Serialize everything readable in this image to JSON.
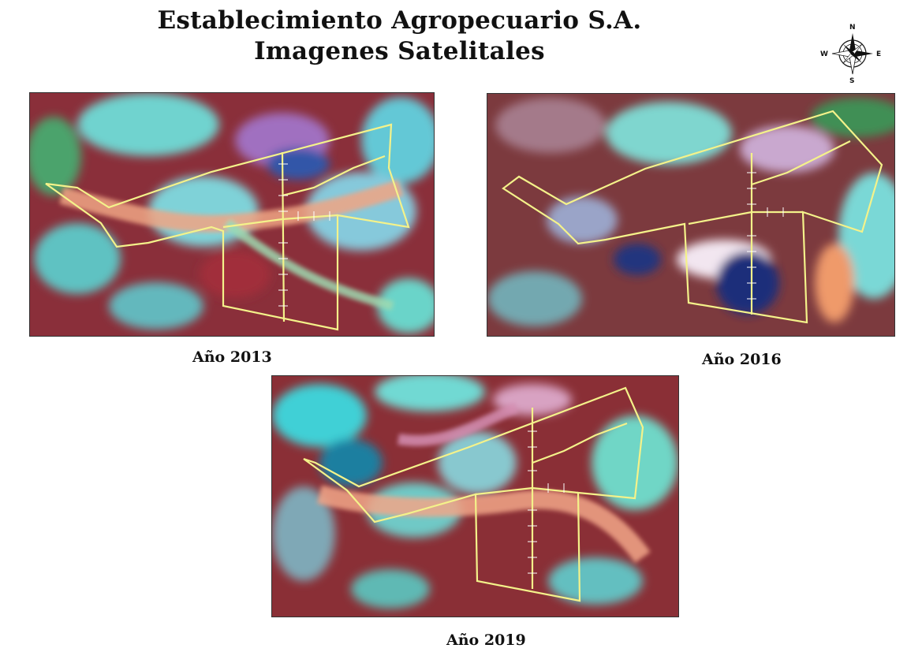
{
  "title": {
    "line1": "Establecimiento Agropecuario S.A.",
    "line2": "Imagenes Satelitales"
  },
  "compass": {
    "n": "N",
    "s": "S",
    "e": "E",
    "w": "W"
  },
  "colors": {
    "vegetation": "#8e2b34",
    "bare_soil": "#7fe6dc",
    "water": "#1c2f7a",
    "boundary": "#f4f28a"
  },
  "maps": [
    {
      "year_label": "Año 2013"
    },
    {
      "year_label": "Año 2016"
    },
    {
      "year_label": "Año 2019"
    }
  ]
}
